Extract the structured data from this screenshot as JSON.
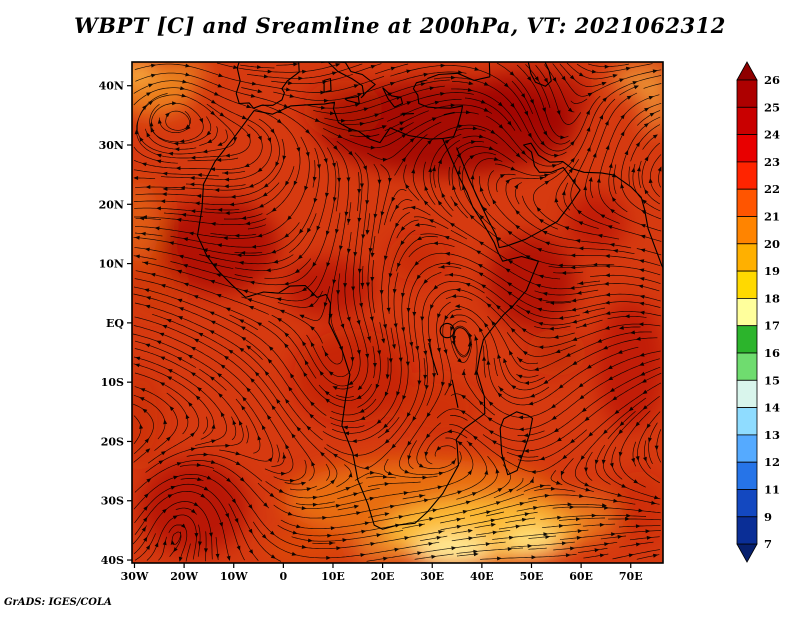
{
  "title": "WBPT [C] and Sreamline at 200hPa, VT: 2021062312",
  "attribution": "GrADS: IGES/COLA",
  "chart_data": {
    "type": "heatmap",
    "title": "WBPT [C] and Sreamline at 200hPa, VT: 2021062312",
    "variable": "WBPT",
    "units": "C",
    "overlay": "Streamline",
    "pressure_level": "200hPa",
    "valid_time": "2021062312",
    "x_axis": "longitude",
    "y_axis": "latitude",
    "x_tick_labels": [
      "30W",
      "20W",
      "10W",
      "0",
      "10E",
      "20E",
      "30E",
      "40E",
      "50E",
      "60E",
      "70E"
    ],
    "y_tick_labels": [
      "40N",
      "30N",
      "20N",
      "10N",
      "EQ",
      "10S",
      "20S",
      "30S",
      "40S"
    ],
    "lon_range": [
      -30.5,
      76.5
    ],
    "lat_range": [
      -40.5,
      44
    ],
    "grid": false,
    "legend_position": "right",
    "colorbar_labels": [
      "26",
      "25",
      "24",
      "23",
      "22",
      "21",
      "20",
      "19",
      "18",
      "17",
      "16",
      "15",
      "14",
      "13",
      "12",
      "11",
      "9",
      "7"
    ],
    "colorbar_colors_top_to_bottom": [
      "#8f0000",
      "#ad0000",
      "#c90000",
      "#e80000",
      "#ff2400",
      "#ff5500",
      "#ff8400",
      "#ffb000",
      "#ffd900",
      "#ffff9c",
      "#2cb42c",
      "#6fdc6f",
      "#d9f5ec",
      "#8fdcff",
      "#55aaff",
      "#2674e8",
      "#1348c0",
      "#0a2e96",
      "#07206e"
    ],
    "streamline_color": "#000000",
    "field_palette": {
      "base": "#d63a10",
      "dark_red": "#9a0300",
      "orange": "#ee7d12",
      "yellow": "#ffc83c",
      "pale_yellow": "#fff0a0"
    }
  }
}
